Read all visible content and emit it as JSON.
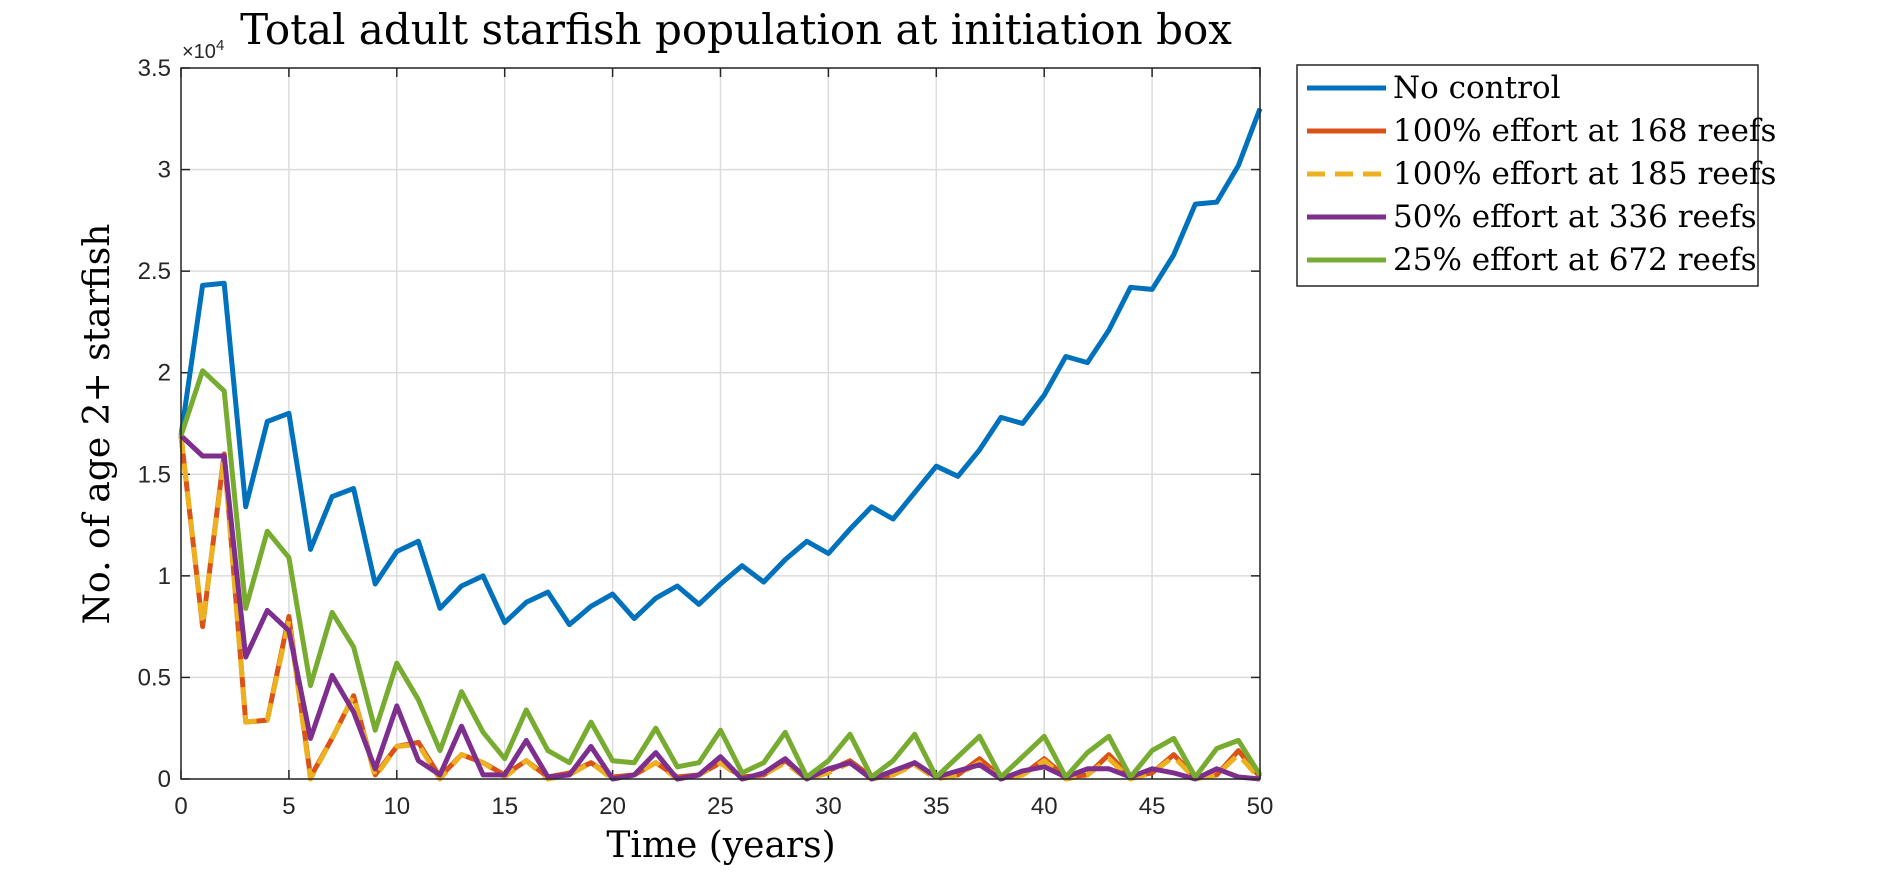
{
  "chart_data": {
    "type": "line",
    "title": "Total adult starfish population at initiation box",
    "xlabel": "Time (years)",
    "ylabel": "No. of age 2+ starfish",
    "y_exponent": "×10",
    "y_exponent_power": "4",
    "xlim": [
      0,
      50
    ],
    "ylim": [
      0,
      3.5
    ],
    "x_ticks": [
      "0",
      "5",
      "10",
      "15",
      "20",
      "25",
      "30",
      "35",
      "40",
      "45",
      "50"
    ],
    "y_ticks": [
      "0",
      "0.5",
      "1",
      "1.5",
      "2",
      "2.5",
      "3",
      "3.5"
    ],
    "grid": true,
    "legend_position": "outside-top-right",
    "x": [
      0,
      1,
      2,
      3,
      4,
      5,
      6,
      7,
      8,
      9,
      10,
      11,
      12,
      13,
      14,
      15,
      16,
      17,
      18,
      19,
      20,
      21,
      22,
      23,
      24,
      25,
      26,
      27,
      28,
      29,
      30,
      31,
      32,
      33,
      34,
      35,
      36,
      37,
      38,
      39,
      40,
      41,
      42,
      43,
      44,
      45,
      46,
      47,
      48,
      49,
      50
    ],
    "series": [
      {
        "name": "No control",
        "color": "#0072BD",
        "dash": "solid",
        "values": [
          1.69,
          2.43,
          2.44,
          1.34,
          1.76,
          1.8,
          1.13,
          1.39,
          1.43,
          0.96,
          1.12,
          1.17,
          0.84,
          0.95,
          1.0,
          0.77,
          0.87,
          0.92,
          0.76,
          0.85,
          0.91,
          0.79,
          0.89,
          0.95,
          0.86,
          0.96,
          1.05,
          0.97,
          1.08,
          1.17,
          1.11,
          1.23,
          1.34,
          1.28,
          1.41,
          1.54,
          1.49,
          1.62,
          1.78,
          1.75,
          1.89,
          2.08,
          2.05,
          2.21,
          2.42,
          2.41,
          2.58,
          2.83,
          2.84,
          3.02,
          3.3
        ]
      },
      {
        "name": "100% effort at 168 reefs",
        "color": "#D95319",
        "dash": "solid",
        "values": [
          1.69,
          0.75,
          1.6,
          0.28,
          0.29,
          0.8,
          0.01,
          0.2,
          0.41,
          0.02,
          0.16,
          0.18,
          0.01,
          0.12,
          0.08,
          0.02,
          0.09,
          0.01,
          0.03,
          0.08,
          0.01,
          0.02,
          0.08,
          0.01,
          0.02,
          0.08,
          0.01,
          0.02,
          0.09,
          0.01,
          0.04,
          0.09,
          0.01,
          0.02,
          0.08,
          0.01,
          0.02,
          0.1,
          0.01,
          0.02,
          0.1,
          0.01,
          0.02,
          0.12,
          0.01,
          0.03,
          0.12,
          0.01,
          0.02,
          0.14,
          0.01
        ]
      },
      {
        "name": "100% effort at 185 reefs",
        "color": "#EDB120",
        "dash": "dashed",
        "values": [
          1.69,
          0.76,
          1.58,
          0.28,
          0.29,
          0.78,
          0.0,
          0.2,
          0.41,
          0.01,
          0.16,
          0.17,
          0.0,
          0.12,
          0.08,
          0.01,
          0.09,
          0.0,
          0.02,
          0.08,
          0.0,
          0.02,
          0.08,
          0.0,
          0.02,
          0.08,
          0.0,
          0.02,
          0.08,
          0.0,
          0.03,
          0.08,
          0.0,
          0.02,
          0.07,
          0.0,
          0.02,
          0.08,
          0.0,
          0.02,
          0.09,
          0.0,
          0.02,
          0.1,
          0.0,
          0.03,
          0.11,
          0.0,
          0.02,
          0.12,
          0.0
        ]
      },
      {
        "name": "50% effort at 336 reefs",
        "color": "#7E2F8E",
        "dash": "solid",
        "values": [
          1.69,
          1.59,
          1.59,
          0.6,
          0.83,
          0.73,
          0.2,
          0.51,
          0.33,
          0.05,
          0.36,
          0.09,
          0.02,
          0.26,
          0.02,
          0.02,
          0.19,
          0.01,
          0.02,
          0.16,
          0.0,
          0.02,
          0.13,
          0.0,
          0.02,
          0.11,
          0.0,
          0.03,
          0.1,
          0.0,
          0.05,
          0.08,
          0.0,
          0.04,
          0.08,
          0.01,
          0.04,
          0.07,
          0.0,
          0.04,
          0.06,
          0.01,
          0.05,
          0.05,
          0.01,
          0.05,
          0.03,
          0.0,
          0.05,
          0.01,
          0.0
        ]
      },
      {
        "name": "25% effort at 672 reefs",
        "color": "#77AC30",
        "dash": "solid",
        "values": [
          1.69,
          2.01,
          1.91,
          0.84,
          1.22,
          1.09,
          0.46,
          0.82,
          0.65,
          0.24,
          0.57,
          0.39,
          0.14,
          0.43,
          0.23,
          0.1,
          0.34,
          0.14,
          0.08,
          0.28,
          0.09,
          0.08,
          0.25,
          0.06,
          0.08,
          0.24,
          0.03,
          0.08,
          0.23,
          0.01,
          0.09,
          0.22,
          0.01,
          0.09,
          0.22,
          0.01,
          0.11,
          0.21,
          0.01,
          0.11,
          0.21,
          0.01,
          0.13,
          0.21,
          0.01,
          0.14,
          0.2,
          0.01,
          0.15,
          0.19,
          0.02
        ]
      }
    ]
  }
}
